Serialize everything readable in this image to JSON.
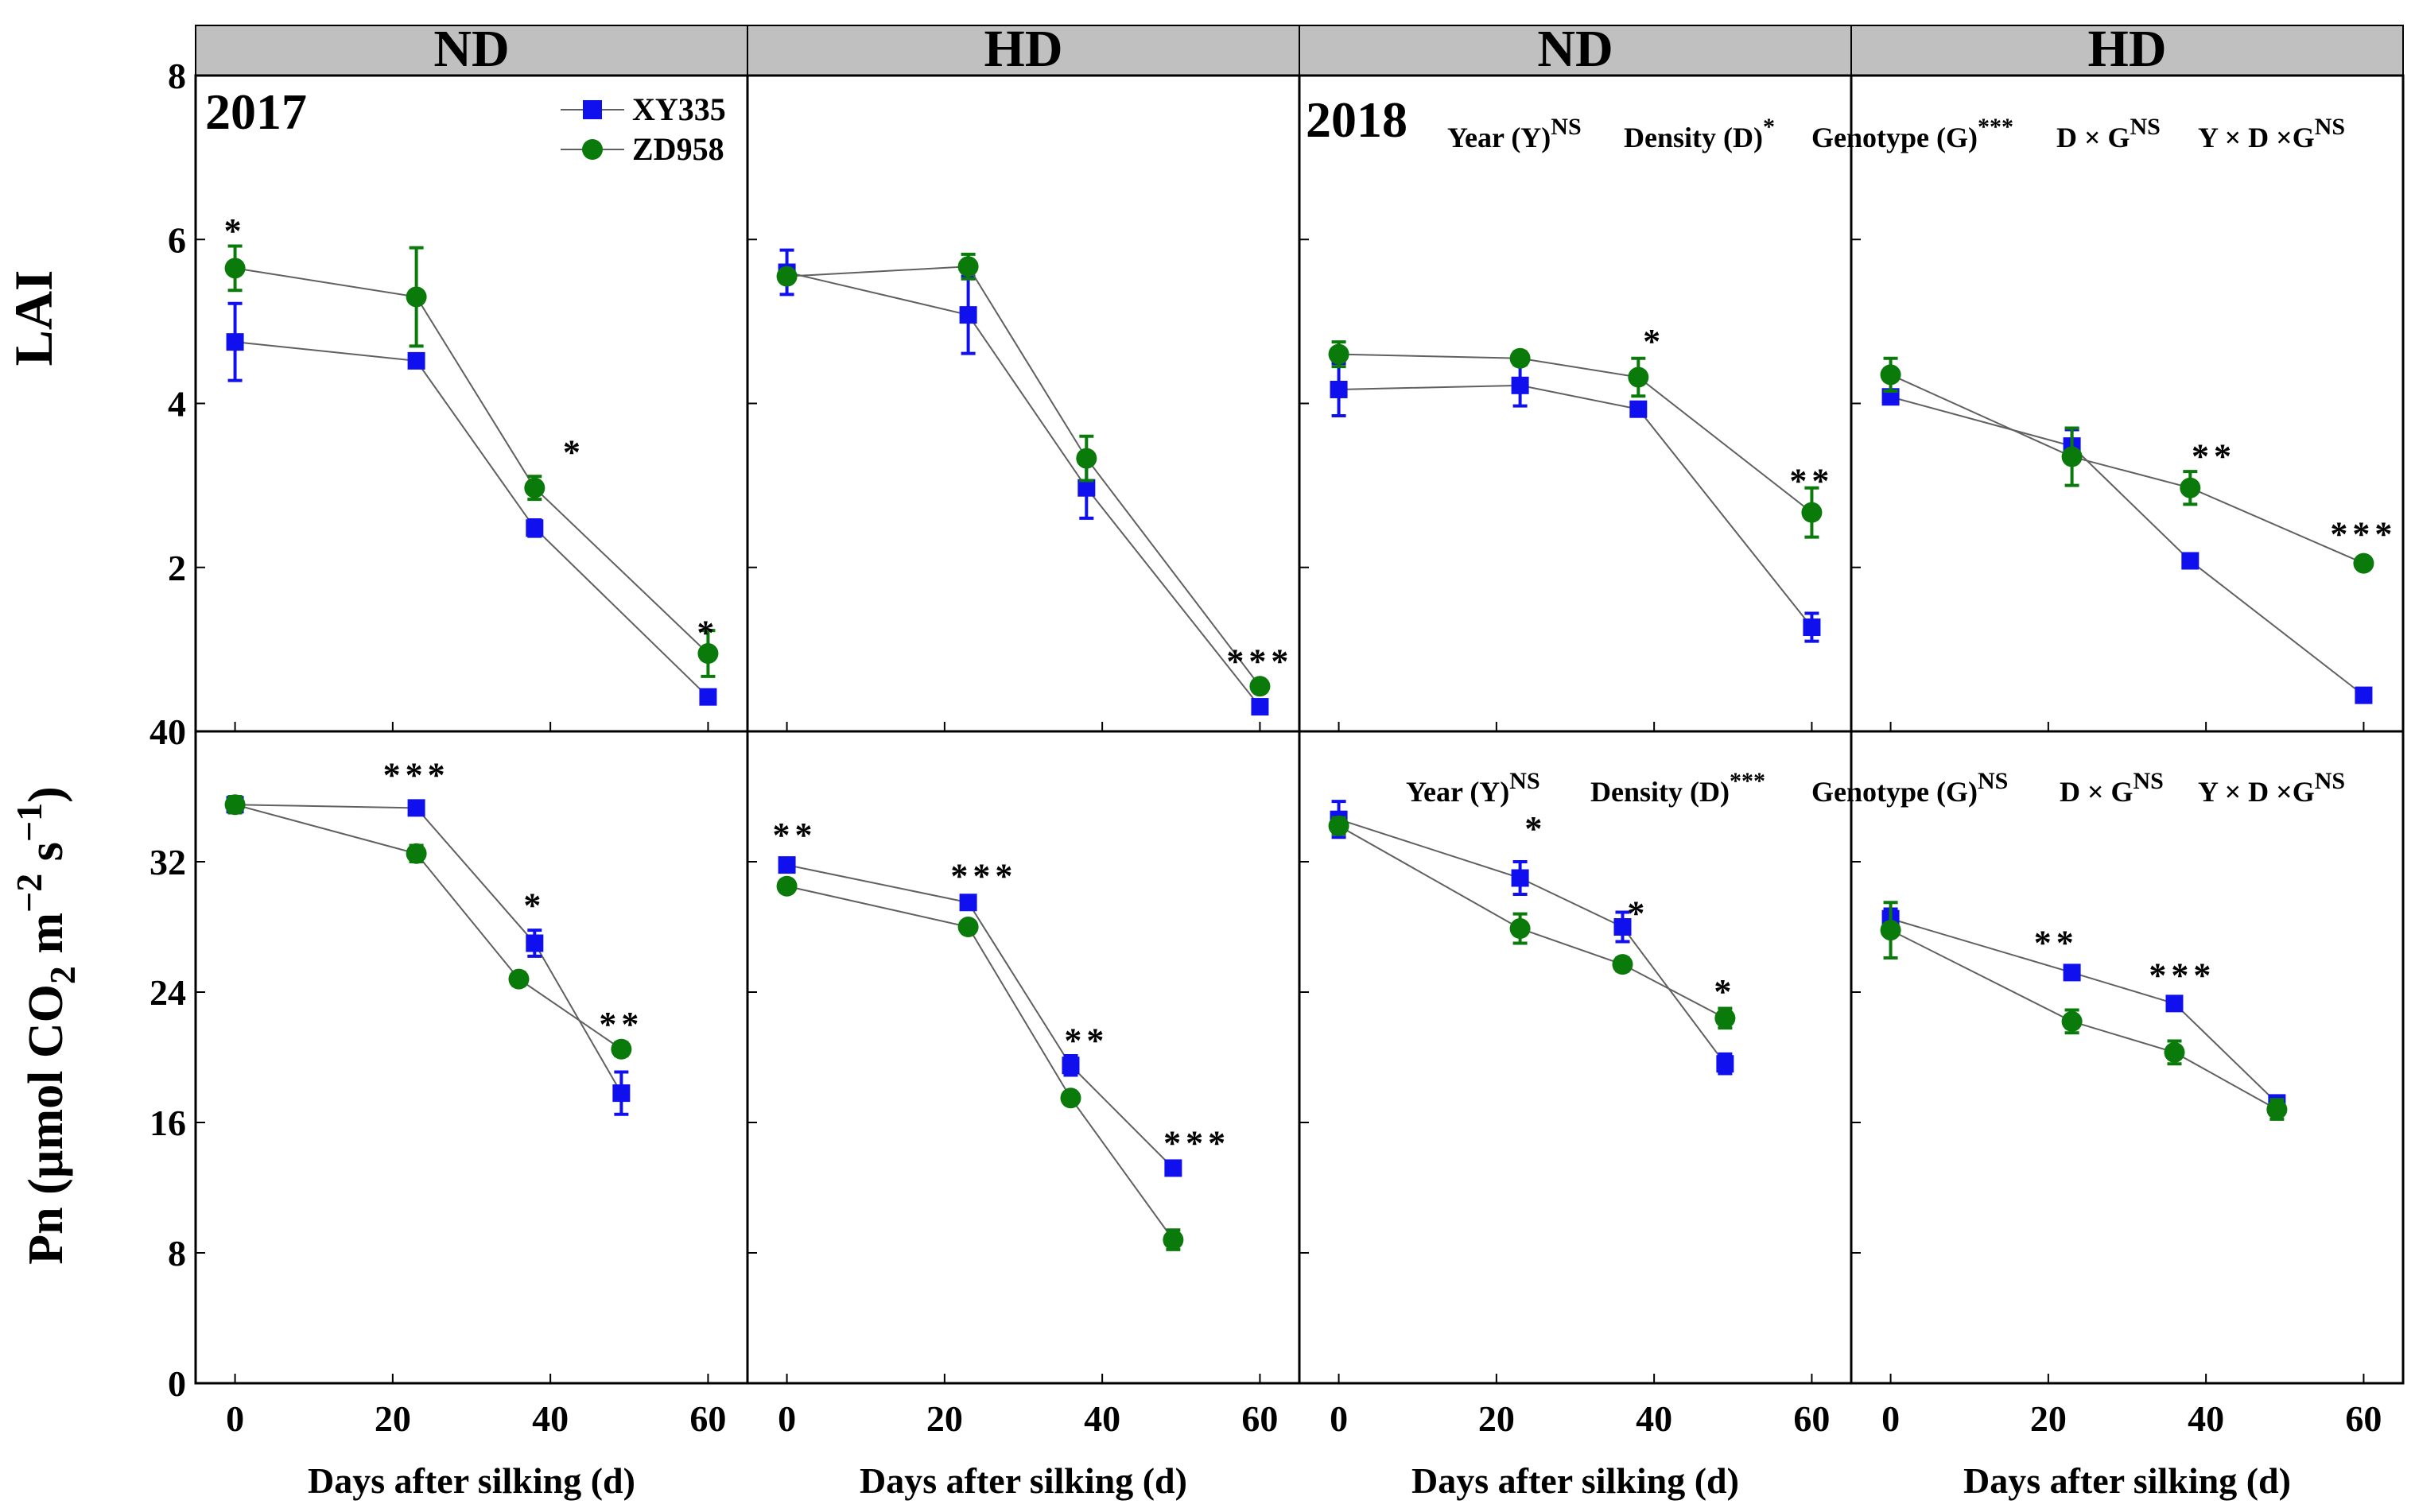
{
  "figure": {
    "yaxis_top_label": "LAI",
    "yaxis_bottom_label": {
      "prefix": "Pn (µmol CO",
      "sub2": "2",
      "mid": " m",
      "sup1": "−2",
      "mid2": " s",
      "sup2": "−1",
      "suffix": ")"
    },
    "xaxis_label": "Days after silking (d)",
    "legend": [
      {
        "name": "XY335",
        "marker": "square",
        "color": "#1010EE"
      },
      {
        "name": "ZD958",
        "marker": "circle",
        "color": "#0A7A0A"
      }
    ],
    "years": [
      "2017",
      "2018"
    ],
    "stats_lai_2018": [
      {
        "text": "Year (Y)",
        "sup": "NS"
      },
      {
        "text": "Density (D)",
        "sup": "*"
      },
      {
        "text": "Genotype (G)",
        "sup": "***"
      },
      {
        "text": "D × G",
        "sup": "NS"
      },
      {
        "text": "Y × D ×G",
        "sup": "NS"
      }
    ],
    "stats_pn_2018": [
      {
        "text": "Year (Y)",
        "sup": "NS"
      },
      {
        "text": "Density (D)",
        "sup": "***"
      },
      {
        "text": "Genotype (G)",
        "sup": "NS"
      },
      {
        "text": "D × G",
        "sup": "NS"
      },
      {
        "text": "Y × D ×G",
        "sup": "NS"
      }
    ],
    "colors": {
      "xy335": "#1010EE",
      "zd958": "#0A7A0A",
      "header_bg": "#C0C0C0",
      "line": "#606060"
    }
  },
  "chart_data": [
    {
      "type": "line",
      "panel": "LAI 2017 ND",
      "header": "ND",
      "ylabel": "LAI",
      "xlabel": "Days after silking (d)",
      "xlim": [
        -5,
        65
      ],
      "ylim": [
        0,
        8
      ],
      "yticks": [
        0,
        2,
        4,
        6,
        8
      ],
      "xticks": [
        0,
        20,
        40,
        60
      ],
      "series": [
        {
          "name": "XY335",
          "x": [
            0,
            23,
            38,
            60
          ],
          "y": [
            4.75,
            4.52,
            2.48,
            0.42
          ],
          "err": [
            0.47,
            0.08,
            0.1,
            0.05
          ]
        },
        {
          "name": "ZD958",
          "x": [
            0,
            23,
            38,
            60
          ],
          "y": [
            5.65,
            5.3,
            2.97,
            0.95
          ],
          "err": [
            0.27,
            0.6,
            0.14,
            0.28
          ]
        }
      ],
      "annotations": [
        {
          "text": "*",
          "x": 0,
          "y": 6.1
        },
        {
          "text": "*",
          "x": 43,
          "y": 3.4
        },
        {
          "text": "*",
          "x": 60,
          "y": 1.2
        }
      ]
    },
    {
      "type": "line",
      "panel": "LAI 2017 HD",
      "header": "HD",
      "xlim": [
        -5,
        65
      ],
      "ylim": [
        0,
        8
      ],
      "xticks": [
        0,
        20,
        40,
        60
      ],
      "series": [
        {
          "name": "XY335",
          "x": [
            0,
            23,
            38,
            60
          ],
          "y": [
            5.6,
            5.08,
            2.97,
            0.3
          ],
          "err": [
            0.27,
            0.47,
            0.37,
            0.05
          ]
        },
        {
          "name": "ZD958",
          "x": [
            0,
            23,
            38,
            60
          ],
          "y": [
            5.55,
            5.67,
            3.33,
            0.55
          ],
          "err": [
            0.05,
            0.15,
            0.27,
            0.05
          ]
        }
      ],
      "annotations": [
        {
          "text": "***",
          "x": 60,
          "y": 0.85
        }
      ]
    },
    {
      "type": "line",
      "panel": "LAI 2018 ND",
      "header": "ND",
      "xlim": [
        -5,
        65
      ],
      "ylim": [
        0,
        8
      ],
      "xticks": [
        0,
        20,
        40,
        60
      ],
      "series": [
        {
          "name": "XY335",
          "x": [
            0,
            23,
            38,
            60
          ],
          "y": [
            4.17,
            4.22,
            3.93,
            1.27
          ],
          "err": [
            0.32,
            0.25,
            0.05,
            0.17
          ]
        },
        {
          "name": "ZD958",
          "x": [
            0,
            23,
            38,
            60
          ],
          "y": [
            4.6,
            4.55,
            4.32,
            2.67
          ],
          "err": [
            0.15,
            0.08,
            0.23,
            0.3
          ]
        }
      ],
      "annotations": [
        {
          "text": "*",
          "x": 40,
          "y": 4.75
        },
        {
          "text": "**",
          "x": 60,
          "y": 3.05
        }
      ]
    },
    {
      "type": "line",
      "panel": "LAI 2018 HD",
      "header": "HD",
      "xlim": [
        -5,
        65
      ],
      "ylim": [
        0,
        8
      ],
      "xticks": [
        0,
        20,
        40,
        60
      ],
      "series": [
        {
          "name": "XY335",
          "x": [
            0,
            23,
            38,
            60
          ],
          "y": [
            4.08,
            3.48,
            2.08,
            0.44
          ],
          "err": [
            0.05,
            0.2,
            0.05,
            0.05
          ]
        },
        {
          "name": "ZD958",
          "x": [
            0,
            23,
            38,
            60
          ],
          "y": [
            4.35,
            3.35,
            2.97,
            2.05
          ],
          "err": [
            0.2,
            0.35,
            0.2,
            0.05
          ]
        }
      ],
      "annotations": [
        {
          "text": "**",
          "x": 41,
          "y": 3.35
        },
        {
          "text": "***",
          "x": 60,
          "y": 2.4
        }
      ]
    },
    {
      "type": "line",
      "panel": "Pn 2017 ND",
      "ylabel": "Pn (µmol CO2 m−2 s−1)",
      "xlabel": "Days after silking (d)",
      "xlim": [
        -5,
        65
      ],
      "ylim": [
        0,
        40
      ],
      "yticks": [
        0,
        8,
        16,
        24,
        32,
        40
      ],
      "xticks": [
        0,
        20,
        40,
        60
      ],
      "series": [
        {
          "name": "XY335",
          "x": [
            0,
            23,
            38,
            49
          ],
          "y": [
            35.5,
            35.3,
            27.0,
            17.8
          ],
          "err": [
            0.4,
            0.3,
            0.8,
            1.3
          ]
        },
        {
          "name": "ZD958",
          "x": [
            0,
            23,
            36,
            49
          ],
          "y": [
            35.5,
            32.5,
            24.8,
            20.5
          ],
          "err": [
            0.5,
            0.5,
            0.4,
            0.4
          ]
        }
      ],
      "annotations": [
        {
          "text": "***",
          "x": 23,
          "y": 37.3
        },
        {
          "text": "*",
          "x": 38,
          "y": 29.3
        },
        {
          "text": "**",
          "x": 49,
          "y": 22.0
        }
      ]
    },
    {
      "type": "line",
      "panel": "Pn 2017 HD",
      "xlim": [
        -5,
        65
      ],
      "ylim": [
        0,
        40
      ],
      "xticks": [
        0,
        20,
        40,
        60
      ],
      "series": [
        {
          "name": "XY335",
          "x": [
            0,
            23,
            36,
            49
          ],
          "y": [
            31.8,
            29.5,
            19.5,
            13.2
          ],
          "err": [
            0.3,
            0.3,
            0.6,
            0.3
          ]
        },
        {
          "name": "ZD958",
          "x": [
            0,
            23,
            36,
            49
          ],
          "y": [
            30.5,
            28.0,
            17.5,
            8.8
          ],
          "err": [
            0.3,
            0.3,
            0.3,
            0.6
          ]
        }
      ],
      "annotations": [
        {
          "text": "**",
          "x": 1,
          "y": 33.6
        },
        {
          "text": "***",
          "x": 25,
          "y": 31.1
        },
        {
          "text": "**",
          "x": 38,
          "y": 21.0
        },
        {
          "text": "***",
          "x": 52,
          "y": 14.7
        }
      ]
    },
    {
      "type": "line",
      "panel": "Pn 2018 ND",
      "xlim": [
        -5,
        65
      ],
      "ylim": [
        0,
        40
      ],
      "xticks": [
        0,
        20,
        40,
        60
      ],
      "series": [
        {
          "name": "XY335",
          "x": [
            0,
            23,
            36,
            49
          ],
          "y": [
            34.6,
            31.0,
            28.0,
            19.6
          ],
          "err": [
            1.1,
            1.0,
            0.9,
            0.6
          ]
        },
        {
          "name": "ZD958",
          "x": [
            0,
            23,
            36,
            49
          ],
          "y": [
            34.2,
            27.9,
            25.7,
            22.4
          ],
          "err": [
            0.5,
            0.9,
            0.4,
            0.6
          ]
        }
      ],
      "annotations": [
        {
          "text": "*",
          "x": 25,
          "y": 34.0
        },
        {
          "text": "*",
          "x": 38,
          "y": 28.8
        },
        {
          "text": "*",
          "x": 49,
          "y": 24.0
        }
      ]
    },
    {
      "type": "line",
      "panel": "Pn 2018 HD",
      "xlim": [
        -5,
        65
      ],
      "ylim": [
        0,
        40
      ],
      "xticks": [
        0,
        20,
        40,
        60
      ],
      "series": [
        {
          "name": "XY335",
          "x": [
            0,
            23,
            36,
            49
          ],
          "y": [
            28.5,
            25.2,
            23.3,
            17.2
          ],
          "err": [
            0.6,
            0.3,
            0.3,
            0.4
          ]
        },
        {
          "name": "ZD958",
          "x": [
            0,
            23,
            36,
            49
          ],
          "y": [
            27.8,
            22.2,
            20.3,
            16.8
          ],
          "err": [
            1.7,
            0.7,
            0.7,
            0.6
          ]
        }
      ],
      "annotations": [
        {
          "text": "**",
          "x": 21,
          "y": 27.0
        },
        {
          "text": "***",
          "x": 37,
          "y": 25.0
        }
      ]
    }
  ]
}
